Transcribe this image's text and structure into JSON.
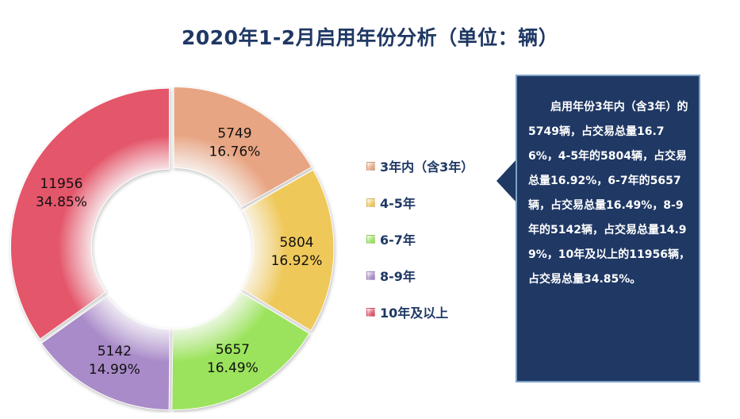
{
  "title": "2020年1-2月启用年份分析（单位：辆）",
  "chart_data": {
    "type": "pie",
    "variant": "donut",
    "title": "2020年1-2月启用年份分析（单位：辆）",
    "unit": "辆",
    "legend_position": "right",
    "slices": [
      {
        "name": "3年内（含3年）",
        "value": 5749,
        "percent": "16.76%",
        "color": "#E8A583"
      },
      {
        "name": "4-5年",
        "value": 5804,
        "percent": "16.92%",
        "color": "#EFC85A"
      },
      {
        "name": "6-7年",
        "value": 5657,
        "percent": "16.49%",
        "color": "#9BE35C"
      },
      {
        "name": "8-9年",
        "value": 5142,
        "percent": "14.99%",
        "color": "#A98BC9"
      },
      {
        "name": "10年及以上",
        "value": 11956,
        "percent": "34.85%",
        "color": "#E4566A"
      }
    ]
  },
  "callout": {
    "text": "启用年份3年内（含3年）的5749辆，占交易总量16.76%，4-5年的5804辆，占交易总量16.92%，6-7年的5657辆，占交易总量16.49%，8-9年的5142辆，占交易总量14.99%，10年及以上的11956辆，占交易总量34.85%。"
  }
}
